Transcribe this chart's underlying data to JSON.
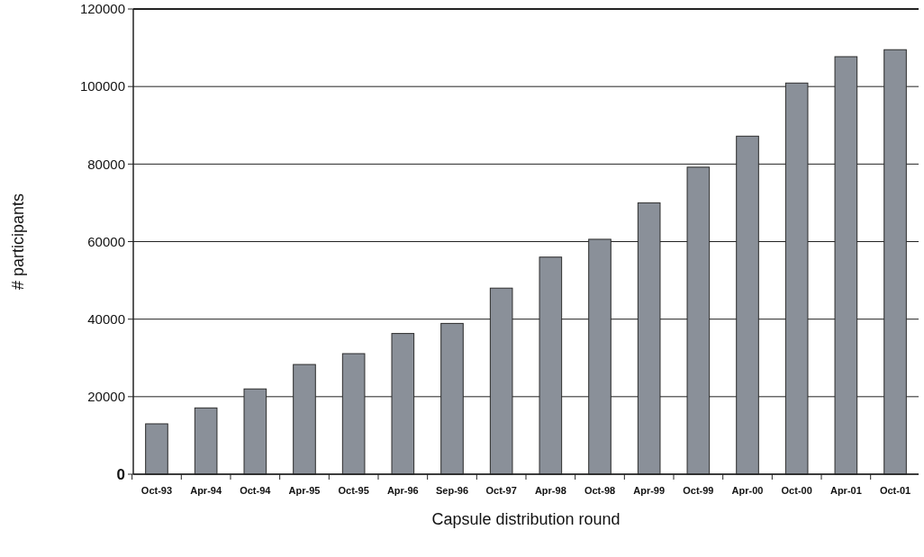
{
  "chart_data": {
    "type": "bar",
    "xlabel": "Capsule distribution round",
    "ylabel": "# participants",
    "categories": [
      "Oct-93",
      "Apr-94",
      "Oct-94",
      "Apr-95",
      "Oct-95",
      "Apr-96",
      "Sep-96",
      "Oct-97",
      "Apr-98",
      "Oct-98",
      "Apr-99",
      "Oct-99",
      "Apr-00",
      "Oct-00",
      "Apr-01",
      "Oct-01"
    ],
    "values": [
      13000,
      17100,
      22000,
      28300,
      31100,
      36300,
      38900,
      48000,
      56000,
      60600,
      70000,
      79200,
      87200,
      100900,
      107700,
      109500
    ],
    "color": "#8a9099",
    "ylim": [
      0,
      120000
    ],
    "yticks": [
      0,
      20000,
      40000,
      60000,
      80000,
      100000,
      120000
    ],
    "grid": "y"
  }
}
